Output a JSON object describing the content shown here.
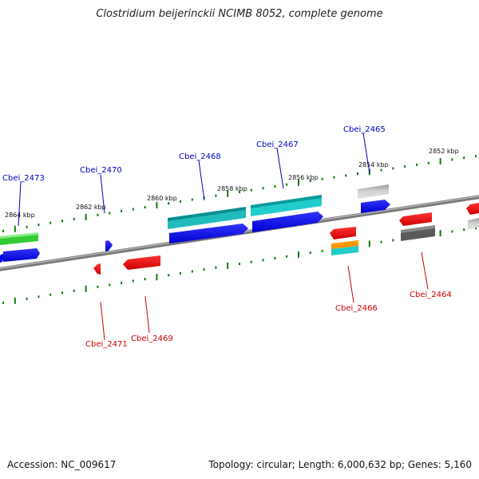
{
  "title": "Clostridium beijerinckii NCIMB 8052, complete genome",
  "footer": {
    "accession": "Accession: NC_009617",
    "summary": "Topology: circular; Length: 6,000,632 bp; Genes: 5,160"
  },
  "colors": {
    "forward_label": "#0000c0",
    "reverse_label": "#cc0000",
    "cds_forward": "#0000ee",
    "cds_reverse": "#ee0000",
    "rna_cyan": "#22cccc",
    "rna_green": "#33cc33",
    "pseudo_gray": "#c0c0c0",
    "dark_gray": "#606060",
    "orange": "#ff9900",
    "tick": "#117711",
    "backbone": "#888888"
  },
  "tick_labels": [
    "2864 kbp",
    "2862 kbp",
    "2860 kbp",
    "2858 kbp",
    "2856 kbp",
    "2854 kbp",
    "2852 kbp"
  ],
  "gene_labels": {
    "forward": [
      "Cbei_2473",
      "Cbei_2470",
      "Cbei_2468",
      "Cbei_2467",
      "Cbei_2465"
    ],
    "reverse": [
      "Cbei_2471",
      "Cbei_2469",
      "Cbei_2466",
      "Cbei_2464"
    ]
  }
}
